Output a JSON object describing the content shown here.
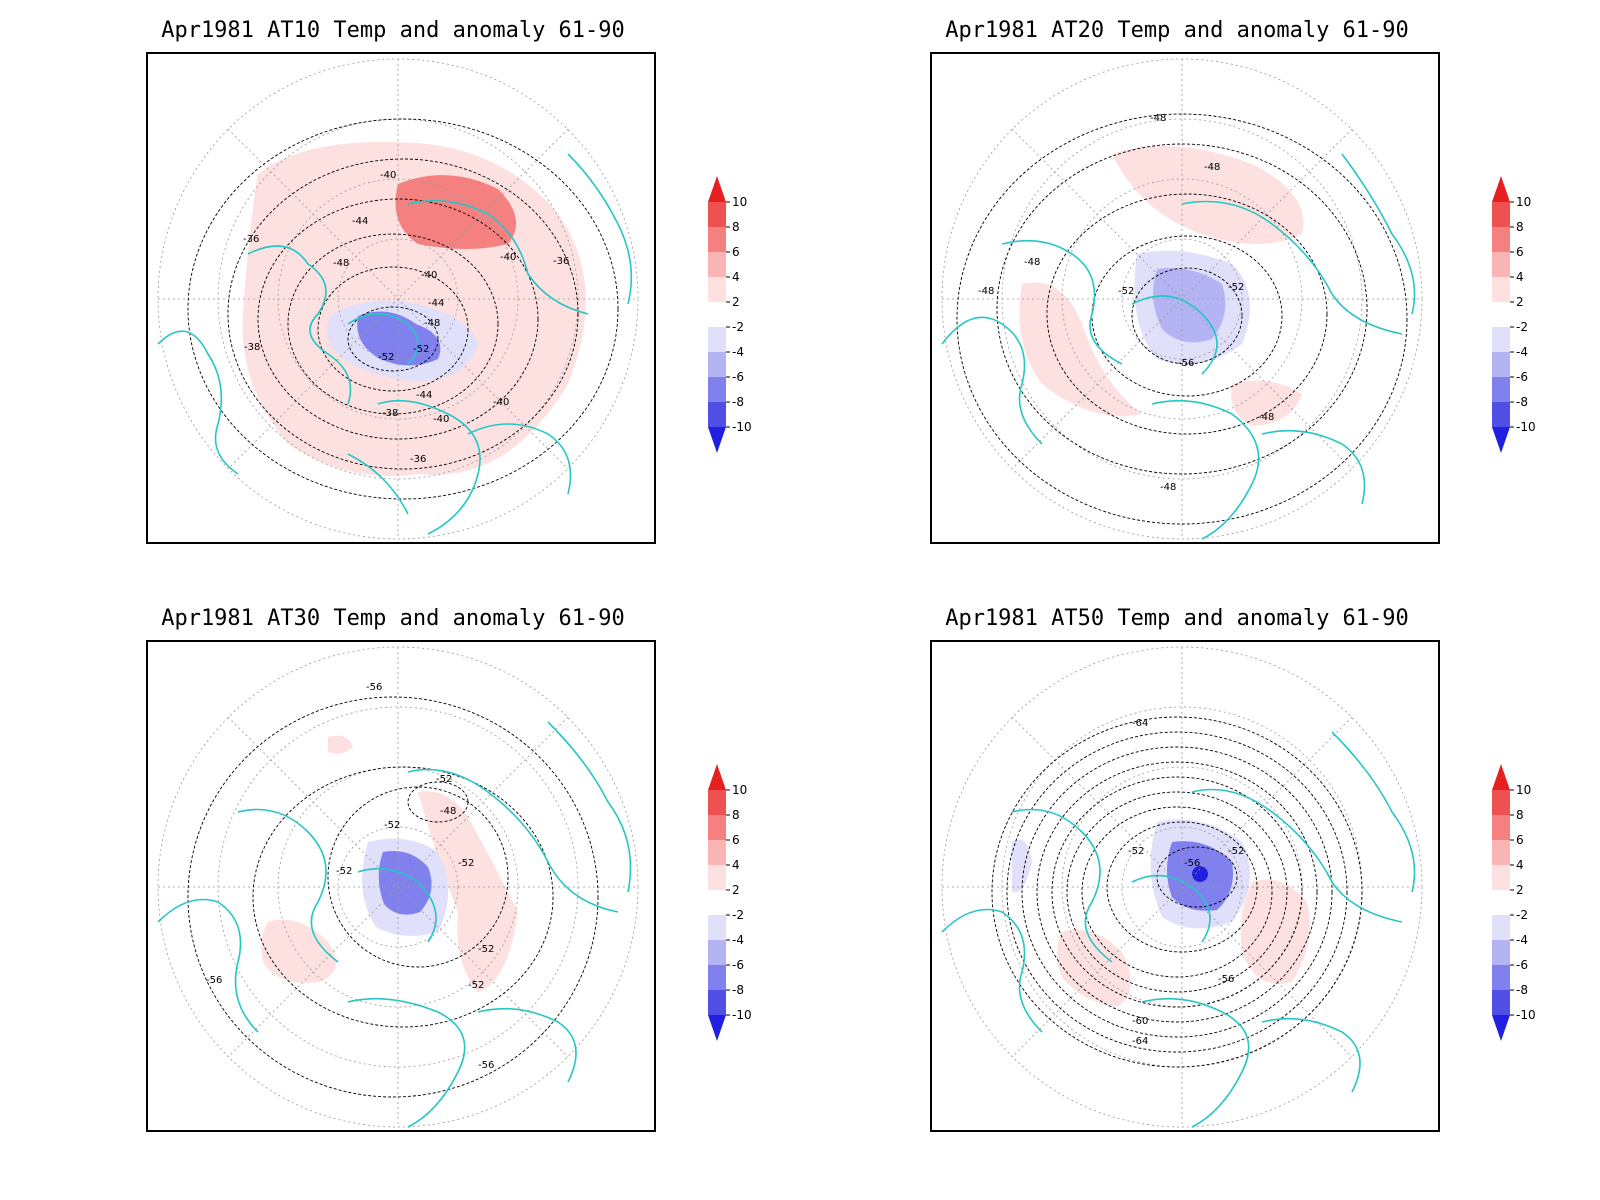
{
  "panels": [
    {
      "title": "Apr1981 AT10 Temp and anomaly 61-90",
      "contour_labels": [
        "-40",
        "-44",
        "-36",
        "-48",
        "-40",
        "-40",
        "-36",
        "-38",
        "-44",
        "-48",
        "-52",
        "-52",
        "-44",
        "-40",
        "-40",
        "-36",
        "-38"
      ]
    },
    {
      "title": "Apr1981 AT20 Temp and anomaly 61-90",
      "contour_labels": [
        "-48",
        "-48",
        "-48",
        "-48",
        "-52",
        "-52",
        "-56",
        "-48",
        "-48"
      ]
    },
    {
      "title": "Apr1981 AT30 Temp and anomaly 61-90",
      "contour_labels": [
        "-56",
        "-52",
        "-48",
        "-52",
        "-52",
        "-52",
        "-52",
        "-52",
        "-56",
        "-56"
      ]
    },
    {
      "title": "Apr1981 AT50 Temp and anomaly 61-90",
      "contour_labels": [
        "-64",
        "-52",
        "-52",
        "-56",
        "-56",
        "-60",
        "-64"
      ]
    }
  ],
  "colorbar": {
    "labels": [
      "10",
      "8",
      "6",
      "4",
      "2",
      "-2",
      "-4",
      "-6",
      "-8",
      "-10"
    ],
    "colors": [
      "#e62020",
      "#ef5050",
      "#f58080",
      "#fab4b4",
      "#fde0e0",
      "#ffffff",
      "#e0e0fa",
      "#b4b4f5",
      "#8080ef",
      "#5050e6",
      "#2020e0"
    ]
  },
  "colors": {
    "coastline": "#26c6c6",
    "contour": "#000000",
    "grid": "#999999"
  }
}
